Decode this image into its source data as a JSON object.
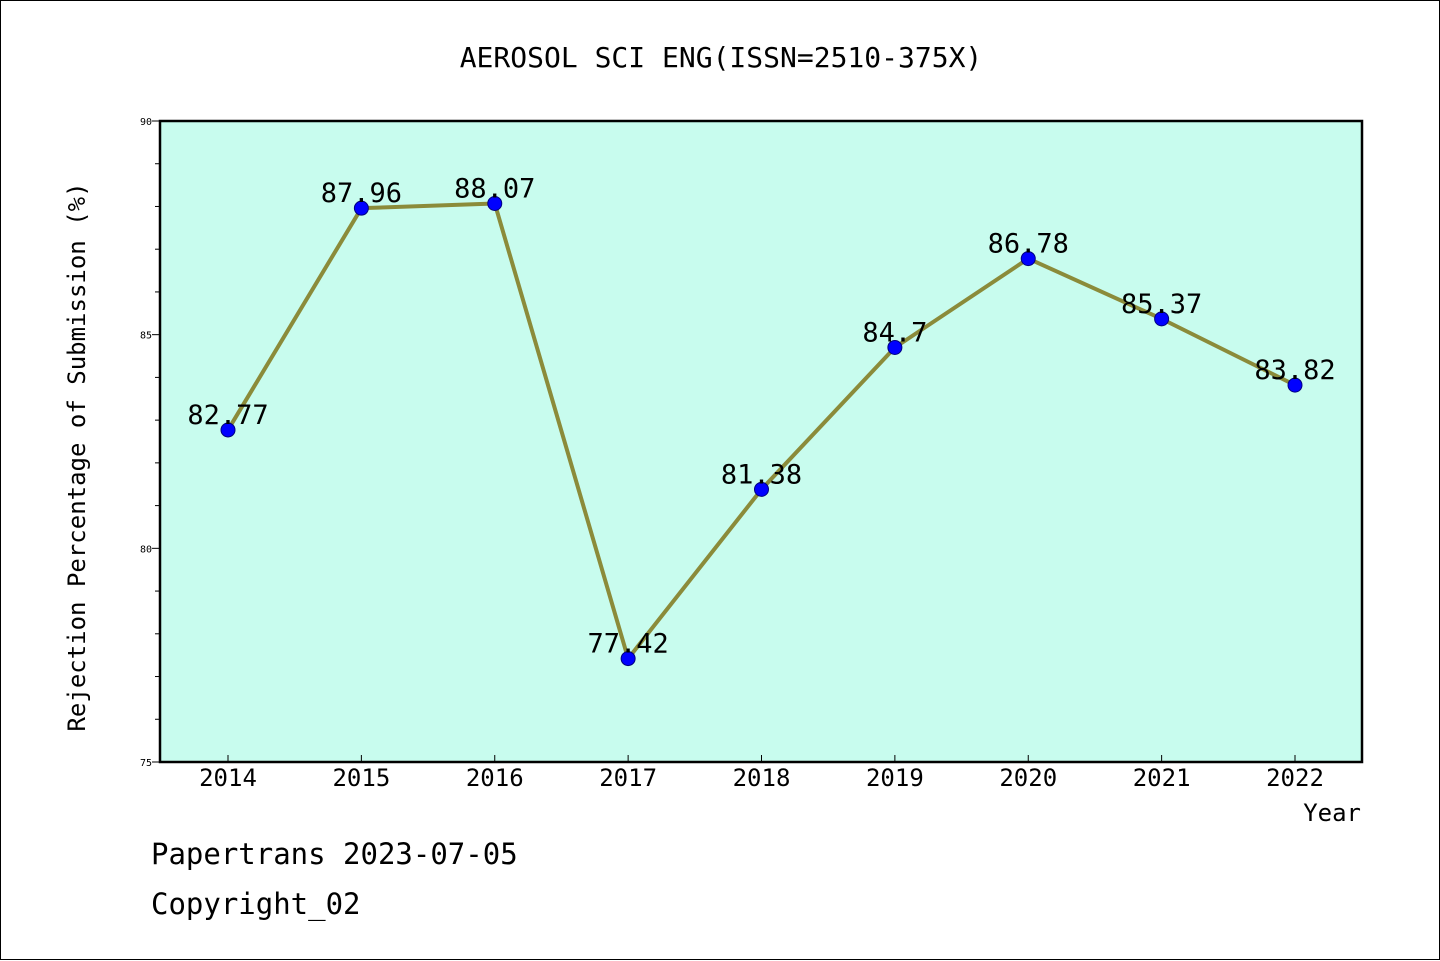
{
  "chart_data": {
    "type": "line",
    "title": "AEROSOL SCI ENG(ISSN=2510-375X)",
    "xlabel": "Year",
    "ylabel": "Rejection Percentage of Submission (%)",
    "categories": [
      "2014",
      "2015",
      "2016",
      "2017",
      "2018",
      "2019",
      "2020",
      "2021",
      "2022"
    ],
    "values": [
      82.77,
      87.96,
      88.07,
      77.42,
      81.38,
      84.7,
      86.78,
      85.37,
      83.82
    ],
    "data_labels": [
      "82.77",
      "87.96",
      "88.07",
      "77.42",
      "81.38",
      "84.7",
      "86.78",
      "85.37",
      "83.82"
    ],
    "ylim": [
      75,
      90
    ],
    "yticks": [
      75,
      80,
      85,
      90
    ],
    "yticks_minor_step": 1,
    "grid": false,
    "colors": {
      "plot_background": "#c8fcee",
      "line": "#8b8b3a",
      "marker": "#0000ff",
      "marker_edge": "#000080"
    }
  },
  "footer": {
    "line1": "Papertrans 2023-07-05",
    "line2": "Copyright_02"
  }
}
